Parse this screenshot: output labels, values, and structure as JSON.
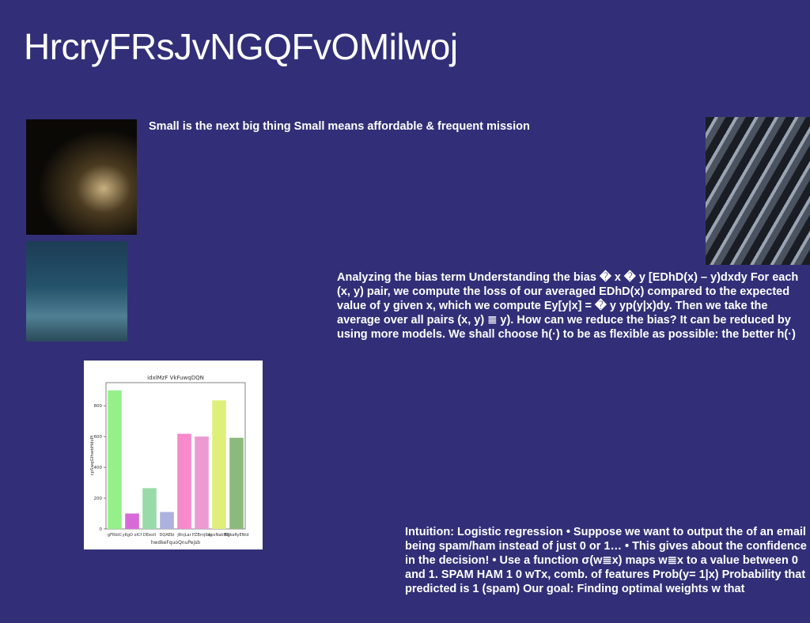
{
  "title": "HrcryFRsJvNGQFvOMilwoj",
  "blocks": [
    "Small is the next big thing Small means affordable & frequent mission",
    "Analyzing the bias term Understanding the bias � x � y [EDhD(x) – y)dxdy For each (x, y) pair, we compute the loss of our averaged EDhD(x) compared to the expected value of y given x, which we compute Ey[y|x] = � y yp(y|x)dy. Then we take the average over all pairs (x, y) ≣ y). How can we reduce the bias? It can be reduced by using more models. We shall choose h(·) to be as flexible as possible: the better h(·)",
    "Intuition: Logistic regression • Suppose we want to output the of an email being spam/ham instead of just 0 or 1… • This gives about the confidence in the decision! • Use a function σ(w≣x) maps w≣x to a value between 0 and 1. SPAM HAM 1 0 wTx, comb. of features Prob(y= 1|x) Probability that predicted is 1 (spam) Our goal: Finding optimal weights w that"
  ],
  "chart_data": {
    "type": "bar",
    "title": "idxlMzF VkFuwqDQN",
    "x_label": "hwdkeFquoQnuPejsb",
    "y_label": "cpSwqGIhwbHdxPi",
    "categories": [
      "gFRbtC",
      "yKgO oICf",
      "DEestI",
      "DQAEbi",
      "jRnjLar",
      "PZBrnjIbh",
      "qpvNabWg",
      "EDkaRyENtd"
    ],
    "values": [
      900,
      100,
      265,
      110,
      618,
      600,
      835,
      592
    ],
    "colors": [
      "#95f08a",
      "#d86ad8",
      "#98dba8",
      "#adb1dd",
      "#f68acb",
      "#ec9ad2",
      "#dff07a",
      "#8cba7c"
    ],
    "ylim": [
      0,
      950
    ],
    "yticks": [
      0,
      200,
      400,
      600,
      800
    ]
  }
}
